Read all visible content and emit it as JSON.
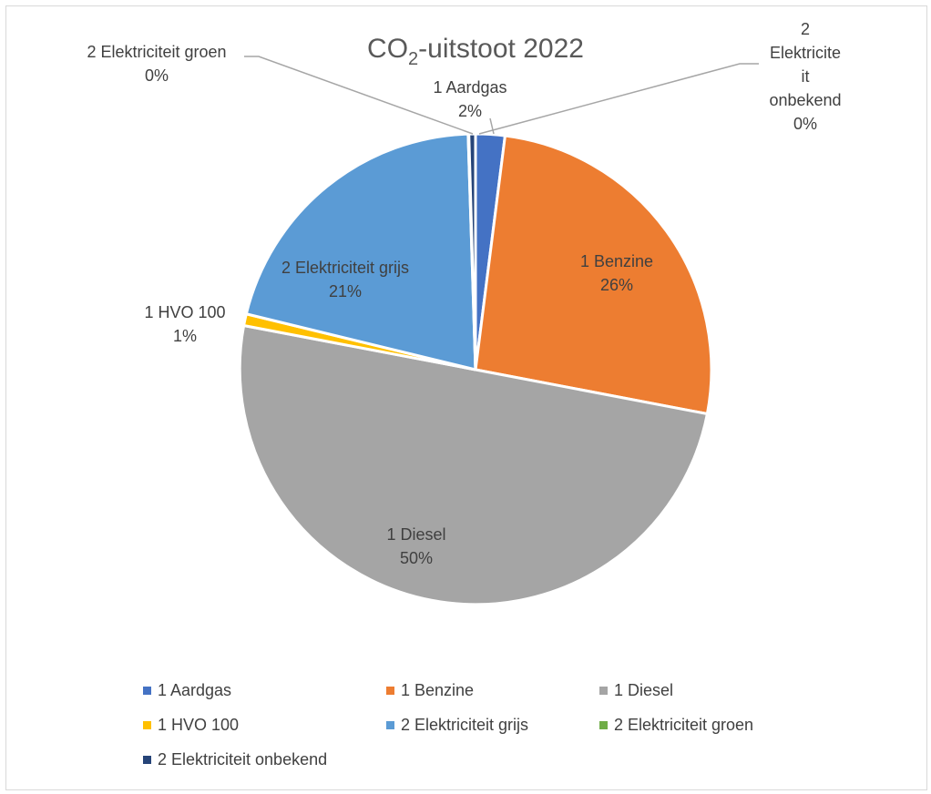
{
  "chart_data": {
    "type": "pie",
    "title": "CO₂-uitstoot 2022",
    "title_parts": {
      "prefix": "CO",
      "subscript": "2",
      "suffix": "-uitstoot 2022"
    },
    "slices": [
      {
        "name": "1 Aardgas",
        "value": 2,
        "label": "2%",
        "color": "#4472c4"
      },
      {
        "name": "1 Benzine",
        "value": 26,
        "label": "26%",
        "color": "#ed7d31"
      },
      {
        "name": "1 Diesel",
        "value": 50,
        "label": "50%",
        "color": "#a5a5a5"
      },
      {
        "name": "1 HVO 100",
        "value": 0.8,
        "label": "1%",
        "color": "#ffc000"
      },
      {
        "name": "2 Elektriciteit grijs",
        "value": 20.7,
        "label": "21%",
        "color": "#5b9bd5"
      },
      {
        "name": "2 Elektriciteit groen",
        "value": 0.05,
        "label": "0%",
        "color": "#70ad47"
      },
      {
        "name": "2 Elektriciteit onbekend",
        "value": 0.45,
        "label": "0%",
        "color": "#264478"
      }
    ],
    "slice_label_lines": [
      [
        "1 Aardgas",
        "2%"
      ],
      [
        "1 Benzine",
        "26%"
      ],
      [
        "1 Diesel",
        "50%"
      ],
      [
        "1 HVO 100",
        "1%"
      ],
      [
        "2 Elektriciteit grijs",
        "21%"
      ],
      [
        "2 Elektriciteit groen",
        "0%"
      ],
      [
        "2",
        "Elektricite",
        "it",
        "onbekend",
        "0%"
      ]
    ],
    "legend": [
      "1 Aardgas",
      "1 Benzine",
      "1 Diesel",
      "1 HVO 100",
      "2 Elektriciteit grijs",
      "2 Elektriciteit groen",
      "2 Elektriciteit onbekend"
    ],
    "legend_position": "bottom"
  }
}
